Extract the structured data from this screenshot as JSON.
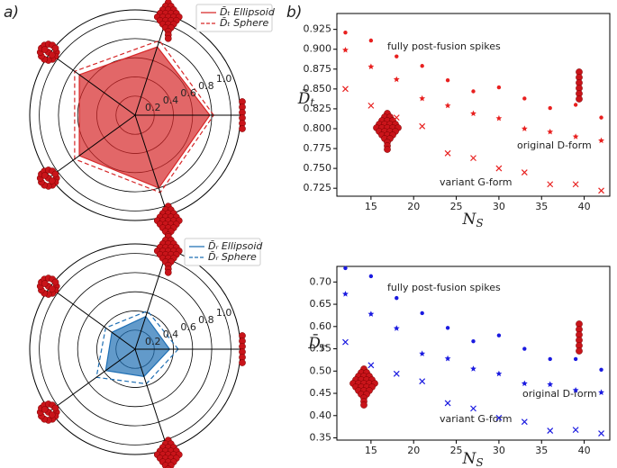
{
  "panel_labels": [
    "a)",
    "b)"
  ],
  "chart_data": [
    {
      "type": "radar",
      "categories": [
        null,
        null,
        null,
        null,
        null
      ],
      "rlim": [
        0,
        1.1
      ],
      "rticks": [
        0.2,
        0.4,
        0.6,
        0.8,
        {
          "value": 1,
          "label": "1.0"
        }
      ],
      "series": [
        {
          "name": "D̄ₜ Ellipsoid",
          "color": "#d62728",
          "linestyle": "solid",
          "fill": true,
          "values": [
            0.78,
            0.75,
            0.72,
            0.72,
            0.8
          ]
        },
        {
          "name": "D̄ₜ Sphere",
          "color": "#d62728",
          "linestyle": "dashed",
          "fill": false,
          "values": [
            0.82,
            0.82,
            0.78,
            0.78,
            0.85
          ]
        }
      ]
    },
    {
      "type": "scatter",
      "xlabel": {
        "base": "N",
        "sub": "S"
      },
      "ylabel": {
        "base": "D̄",
        "sub": "t"
      },
      "x": [
        12,
        15,
        18,
        21,
        24,
        27,
        30,
        33,
        36,
        39,
        42
      ],
      "xlim": [
        11,
        43
      ],
      "xticks": [
        15,
        20,
        25,
        30,
        35,
        40
      ],
      "ylim": [
        0.715,
        0.945
      ],
      "yticks": [
        0.725,
        {
          "value": 0.75,
          "label": "0.750"
        },
        0.775,
        {
          "value": 0.8,
          "label": "0.800"
        },
        0.825,
        {
          "value": 0.85,
          "label": "0.850"
        },
        0.875,
        {
          "value": 0.9,
          "label": "0.900"
        },
        0.925
      ],
      "annotations": [
        "fully post-fusion spikes",
        "original D-form",
        "variant G-form"
      ],
      "series": [
        {
          "marker": "o",
          "color": "#e8201f",
          "values": [
            0.921,
            0.911,
            0.891,
            0.879,
            0.861,
            0.847,
            0.852,
            0.838,
            0.826,
            0.83,
            0.814
          ]
        },
        {
          "marker": "*",
          "color": "#e8201f",
          "values": [
            0.899,
            0.878,
            0.862,
            0.838,
            0.829,
            0.819,
            0.813,
            0.8,
            0.796,
            0.79,
            0.785
          ]
        },
        {
          "marker": "x",
          "color": "#e8201f",
          "values": [
            0.85,
            0.829,
            0.814,
            0.803,
            0.769,
            0.763,
            0.75,
            0.745,
            0.73,
            0.73,
            0.722
          ]
        }
      ]
    },
    {
      "type": "radar",
      "categories": [
        null,
        null,
        null,
        null,
        null
      ],
      "rlim": [
        0,
        1.1
      ],
      "rticks": [
        0.2,
        0.4,
        0.6,
        0.8,
        {
          "value": 1,
          "label": "1.0"
        }
      ],
      "series": [
        {
          "name": "D̄ᵣ Ellipsoid",
          "color": "#1f6fb4",
          "linestyle": "solid",
          "fill": true,
          "values": [
            0.36,
            0.36,
            0.3,
            0.38,
            0.3
          ]
        },
        {
          "name": "D̄ᵣ Sphere",
          "color": "#1f6fb4",
          "linestyle": "dashed",
          "fill": false,
          "values": [
            0.45,
            0.42,
            0.38,
            0.5,
            0.38
          ]
        }
      ]
    },
    {
      "type": "scatter",
      "xlabel": {
        "base": "N",
        "sub": "S"
      },
      "ylabel": {
        "base": "D̄",
        "sub": "r"
      },
      "x": [
        12,
        15,
        18,
        21,
        24,
        27,
        30,
        33,
        36,
        39,
        42
      ],
      "xlim": [
        11,
        43
      ],
      "xticks": [
        15,
        20,
        25,
        30,
        35,
        40
      ],
      "ylim": [
        0.345,
        0.735
      ],
      "yticks": [
        0.35,
        {
          "value": 0.4,
          "label": "0.40"
        },
        0.45,
        {
          "value": 0.5,
          "label": "0.50"
        },
        0.55,
        {
          "value": 0.6,
          "label": "0.60"
        },
        0.65,
        {
          "value": 0.7,
          "label": "0.70"
        }
      ],
      "annotations": [
        "fully post-fusion spikes",
        "original D-form",
        "variant G-form"
      ],
      "series": [
        {
          "marker": "o",
          "color": "#1a1ae0",
          "values": [
            0.731,
            0.713,
            0.664,
            0.63,
            0.597,
            0.567,
            0.58,
            0.55,
            0.527,
            0.527,
            0.503
          ]
        },
        {
          "marker": "*",
          "color": "#1a1ae0",
          "values": [
            0.673,
            0.628,
            0.596,
            0.539,
            0.528,
            0.505,
            0.494,
            0.472,
            0.47,
            0.457,
            0.452
          ]
        },
        {
          "marker": "x",
          "color": "#1a1ae0",
          "values": [
            0.565,
            0.513,
            0.494,
            0.477,
            0.428,
            0.416,
            0.395,
            0.386,
            0.366,
            0.368,
            0.36
          ]
        }
      ]
    }
  ]
}
